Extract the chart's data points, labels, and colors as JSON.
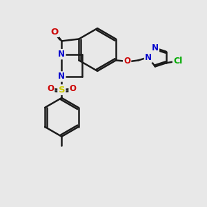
{
  "bg_color": "#e8e8e8",
  "bond_color": "#1a1a1a",
  "bond_width": 1.8,
  "atom_colors": {
    "N": "#0000cc",
    "O": "#cc0000",
    "S": "#cccc00",
    "Cl": "#00aa00"
  },
  "font_size": 8.5,
  "fig_size": [
    3.0,
    3.0
  ],
  "dpi": 100
}
